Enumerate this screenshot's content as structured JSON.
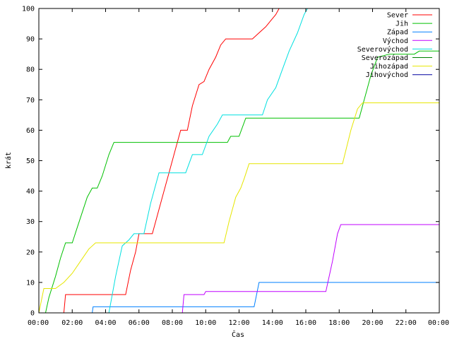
{
  "chart_data": {
    "type": "line",
    "title": "",
    "xlabel": "Čas",
    "ylabel": "krát",
    "xlim": [
      0,
      24
    ],
    "ylim": [
      0,
      100
    ],
    "x_ticks": [
      0,
      2,
      4,
      6,
      8,
      10,
      12,
      14,
      16,
      18,
      20,
      22,
      24
    ],
    "x_tick_labels": [
      "00:00",
      "02:00",
      "04:00",
      "06:00",
      "08:00",
      "10:00",
      "12:00",
      "14:00",
      "16:00",
      "18:00",
      "20:00",
      "22:00",
      "00:00"
    ],
    "y_ticks": [
      0,
      10,
      20,
      30,
      40,
      50,
      60,
      70,
      80,
      90,
      100
    ],
    "grid": false,
    "legend_position": "top-right",
    "series": [
      {
        "name": "Sever",
        "color": "#ff0000",
        "points": [
          [
            0,
            0
          ],
          [
            1.5,
            0
          ],
          [
            1.6,
            6
          ],
          [
            5.2,
            6
          ],
          [
            5.5,
            14
          ],
          [
            5.8,
            20
          ],
          [
            6,
            26
          ],
          [
            6.8,
            26
          ],
          [
            7,
            30
          ],
          [
            7.4,
            38
          ],
          [
            7.8,
            46
          ],
          [
            8.2,
            54
          ],
          [
            8.5,
            60
          ],
          [
            8.9,
            60
          ],
          [
            9.2,
            68
          ],
          [
            9.6,
            75
          ],
          [
            9.9,
            76
          ],
          [
            10.2,
            80
          ],
          [
            10.6,
            84
          ],
          [
            10.9,
            88
          ],
          [
            11.2,
            90
          ],
          [
            12.8,
            90
          ],
          [
            13.2,
            92
          ],
          [
            13.6,
            94
          ],
          [
            13.9,
            96
          ],
          [
            14.2,
            98
          ],
          [
            14.4,
            100
          ]
        ]
      },
      {
        "name": "Jih",
        "color": "#00c000",
        "points": [
          [
            0,
            0
          ],
          [
            0.4,
            0
          ],
          [
            0.6,
            5
          ],
          [
            1,
            12
          ],
          [
            1.3,
            18
          ],
          [
            1.6,
            23
          ],
          [
            2,
            23
          ],
          [
            2.3,
            28
          ],
          [
            2.6,
            33
          ],
          [
            2.9,
            38
          ],
          [
            3.2,
            41
          ],
          [
            3.5,
            41
          ],
          [
            3.8,
            45
          ],
          [
            4.2,
            52
          ],
          [
            4.5,
            56
          ],
          [
            11.3,
            56
          ],
          [
            11.5,
            58
          ],
          [
            12,
            58
          ],
          [
            12.4,
            64
          ],
          [
            19.2,
            64
          ],
          [
            19.5,
            70
          ],
          [
            19.9,
            78
          ],
          [
            20.3,
            84
          ],
          [
            21,
            85
          ],
          [
            22.5,
            85
          ],
          [
            22.8,
            86
          ],
          [
            24,
            86
          ]
        ]
      },
      {
        "name": "Západ",
        "color": "#0080ff",
        "points": [
          [
            0,
            0
          ],
          [
            3.2,
            0
          ],
          [
            3.25,
            2
          ],
          [
            12.9,
            2
          ],
          [
            13.05,
            6
          ],
          [
            13.2,
            10
          ],
          [
            24,
            10
          ]
        ]
      },
      {
        "name": "Východ",
        "color": "#c000ff",
        "points": [
          [
            0,
            0
          ],
          [
            8.6,
            0
          ],
          [
            8.7,
            6
          ],
          [
            9.9,
            6
          ],
          [
            10,
            7
          ],
          [
            17.2,
            7
          ],
          [
            17.6,
            17
          ],
          [
            17.9,
            26
          ],
          [
            18.1,
            29
          ],
          [
            24,
            29
          ]
        ]
      },
      {
        "name": "Severovýchod",
        "color": "#00e0e0",
        "points": [
          [
            0,
            0
          ],
          [
            4.2,
            0
          ],
          [
            4.6,
            12
          ],
          [
            5,
            22
          ],
          [
            5.4,
            24
          ],
          [
            5.7,
            26
          ],
          [
            6.3,
            26
          ],
          [
            6.7,
            36
          ],
          [
            7.2,
            46
          ],
          [
            8.8,
            46
          ],
          [
            9.2,
            52
          ],
          [
            9.8,
            52
          ],
          [
            10.2,
            58
          ],
          [
            10.7,
            62
          ],
          [
            11,
            65
          ],
          [
            13.4,
            65
          ],
          [
            13.7,
            70
          ],
          [
            14.2,
            74
          ],
          [
            14.6,
            80
          ],
          [
            15,
            86
          ],
          [
            15.5,
            92
          ],
          [
            15.9,
            98
          ],
          [
            16.1,
            100
          ]
        ]
      },
      {
        "name": "Severozápad",
        "color": "#008000",
        "points": []
      },
      {
        "name": "Jihozápad",
        "color": "#e6e600",
        "points": [
          [
            0,
            0
          ],
          [
            0.3,
            8
          ],
          [
            1,
            8
          ],
          [
            1.5,
            10
          ],
          [
            2,
            13
          ],
          [
            2.5,
            17
          ],
          [
            3,
            21
          ],
          [
            3.4,
            23
          ],
          [
            11.1,
            23
          ],
          [
            11.4,
            30
          ],
          [
            11.8,
            38
          ],
          [
            12.1,
            41
          ],
          [
            12.3,
            44
          ],
          [
            12.6,
            49
          ],
          [
            18.2,
            49
          ],
          [
            18.7,
            60
          ],
          [
            19.1,
            67
          ],
          [
            19.4,
            69
          ],
          [
            24,
            69
          ]
        ]
      },
      {
        "name": "Jihovýchod",
        "color": "#0000a0",
        "points": []
      }
    ]
  }
}
